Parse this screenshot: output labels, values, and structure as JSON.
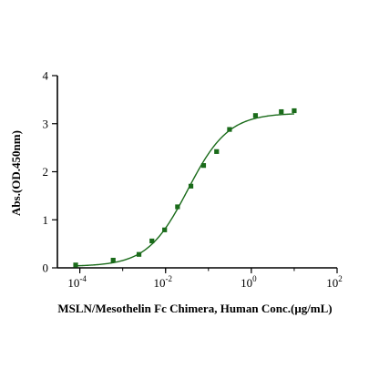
{
  "chart_data": {
    "type": "scatter",
    "title": "",
    "xlabel": "MSLN/Mesothelin Fc Chimera, Human Conc.(μg/mL)",
    "ylabel": "Abs.(OD.450nm)",
    "x_scale": "log",
    "xlim": [
      3e-05,
      100
    ],
    "ylim": [
      0,
      4
    ],
    "x_ticks": [
      {
        "value": 0.0001,
        "base": "10",
        "exp": "-4"
      },
      {
        "value": 0.01,
        "base": "10",
        "exp": "-2"
      },
      {
        "value": 1,
        "base": "10",
        "exp": "0"
      },
      {
        "value": 100,
        "base": "10",
        "exp": "2"
      }
    ],
    "y_ticks": [
      {
        "value": 0,
        "label": "0"
      },
      {
        "value": 1,
        "label": "1"
      },
      {
        "value": 2,
        "label": "2"
      },
      {
        "value": 3,
        "label": "3"
      },
      {
        "value": 4,
        "label": "4"
      }
    ],
    "grid": false,
    "legend": "none",
    "color": "#1a6b1a",
    "series": [
      {
        "x": [
          8e-05,
          0.0006,
          0.0024,
          0.0048,
          0.0095,
          0.019,
          0.039,
          0.077,
          0.155,
          0.31,
          1.25,
          5,
          10
        ],
        "y": [
          0.06,
          0.16,
          0.28,
          0.56,
          0.79,
          1.27,
          1.7,
          2.13,
          2.42,
          2.88,
          3.17,
          3.25,
          3.27
        ]
      }
    ],
    "fit": {
      "model": "4PL",
      "bottom": 0.03,
      "top": 3.22,
      "ec50": 0.033,
      "hill": 0.92,
      "x_range": [
        8e-05,
        10
      ]
    }
  }
}
